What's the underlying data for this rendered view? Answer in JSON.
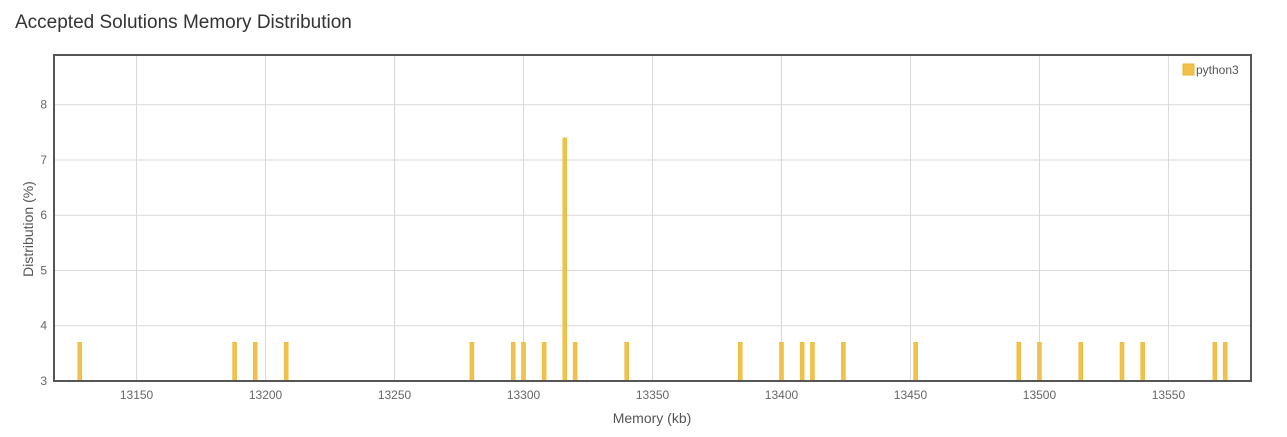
{
  "title": "Accepted Solutions Memory Distribution",
  "colors": {
    "bar": "#f0c24b",
    "bar_stroke": "#e8b52d",
    "grid": "#d9d9d9",
    "frame": "#555555"
  },
  "chart_data": {
    "type": "bar",
    "title": "Accepted Solutions Memory Distribution",
    "xlabel": "Memory (kb)",
    "ylabel": "Distribution (%)",
    "xlim": [
      13118,
      13582
    ],
    "ylim": [
      3,
      8.9
    ],
    "x_ticks": [
      13150,
      13200,
      13250,
      13300,
      13350,
      13400,
      13450,
      13500,
      13550
    ],
    "y_ticks": [
      3,
      4,
      5,
      6,
      7,
      8
    ],
    "grid": true,
    "legend_position": "top-right",
    "series": [
      {
        "name": "python3",
        "x": [
          13128,
          13188,
          13196,
          13208,
          13280,
          13296,
          13300,
          13308,
          13316,
          13320,
          13340,
          13384,
          13400,
          13408,
          13412,
          13424,
          13452,
          13492,
          13500,
          13516,
          13532,
          13540,
          13568,
          13572
        ],
        "values": [
          3.7,
          3.7,
          3.7,
          3.7,
          3.7,
          3.7,
          3.7,
          3.7,
          7.4,
          3.7,
          3.7,
          3.7,
          3.7,
          3.7,
          3.7,
          3.7,
          3.7,
          3.7,
          3.7,
          3.7,
          3.7,
          3.7,
          3.7,
          3.7
        ]
      }
    ]
  }
}
